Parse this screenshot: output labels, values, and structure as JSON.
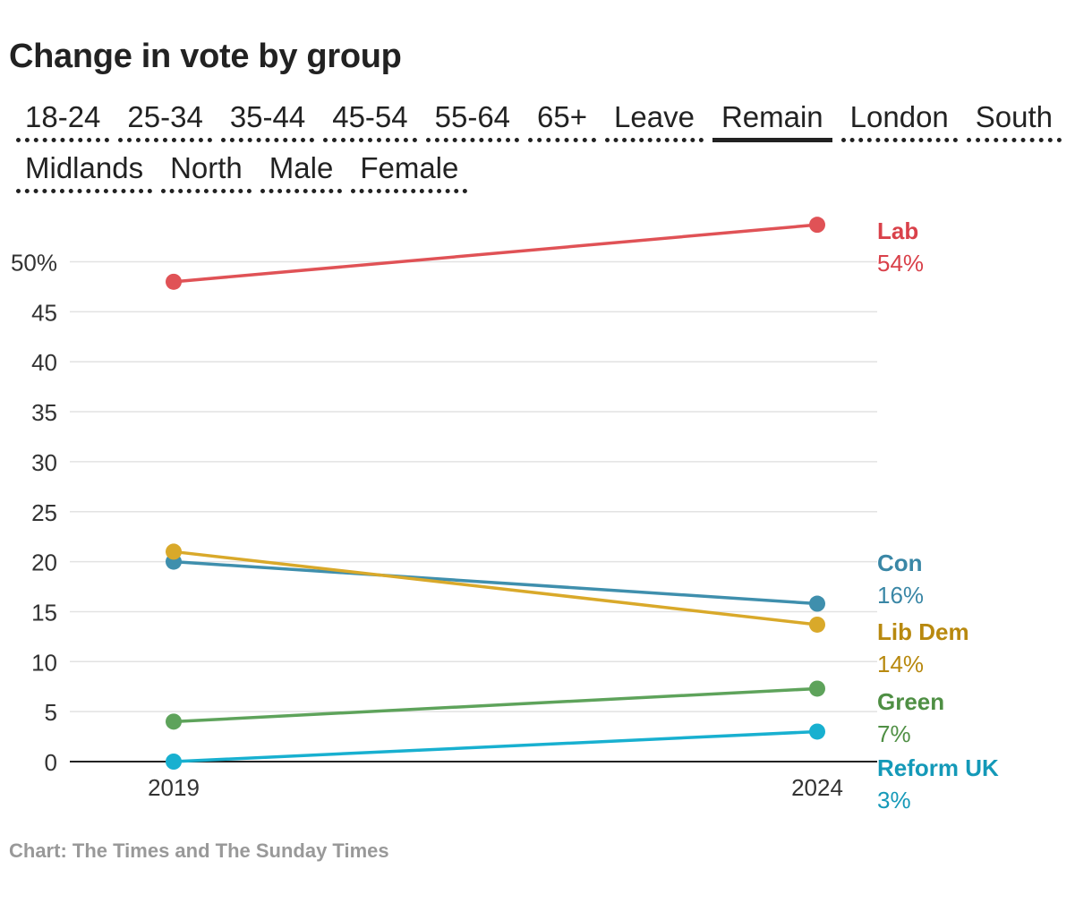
{
  "title": "Change in vote by group",
  "tabs": {
    "row1": [
      "18-24",
      "25-34",
      "35-44",
      "45-54",
      "55-64",
      "65+",
      "Leave",
      "Remain",
      "London",
      "South"
    ],
    "row2": [
      "Midlands",
      "North",
      "Male",
      "Female"
    ],
    "active": "Remain"
  },
  "footer": "Chart: The Times and The Sunday Times",
  "chart_data": {
    "type": "line",
    "x": [
      "2019",
      "2024"
    ],
    "ylim": [
      0,
      54
    ],
    "yticks": [
      0,
      5,
      10,
      15,
      20,
      25,
      30,
      35,
      40,
      45,
      50
    ],
    "ytick_labels": [
      "0",
      "5",
      "10",
      "15",
      "20",
      "25",
      "30",
      "35",
      "40",
      "45",
      "50%"
    ],
    "grid": true,
    "series": [
      {
        "name": "Lab",
        "values": [
          48,
          53.7
        ],
        "label": "54%",
        "color": "#e05256"
      },
      {
        "name": "Con",
        "values": [
          20,
          15.8
        ],
        "label": "16%",
        "color": "#3f8fad"
      },
      {
        "name": "Lib Dem",
        "values": [
          21,
          13.7
        ],
        "label": "14%",
        "color": "#d9a92a"
      },
      {
        "name": "Green",
        "values": [
          4,
          7.3
        ],
        "label": "7%",
        "color": "#5ea35b"
      },
      {
        "name": "Reform UK",
        "values": [
          0,
          3
        ],
        "label": "3%",
        "color": "#18b0d0"
      }
    ],
    "label_colors": {
      "Lab": "#d9414a",
      "Con": "#3a87a6",
      "Lib Dem": "#b8890f",
      "Green": "#4f8f44",
      "Reform UK": "#1499b8"
    }
  }
}
